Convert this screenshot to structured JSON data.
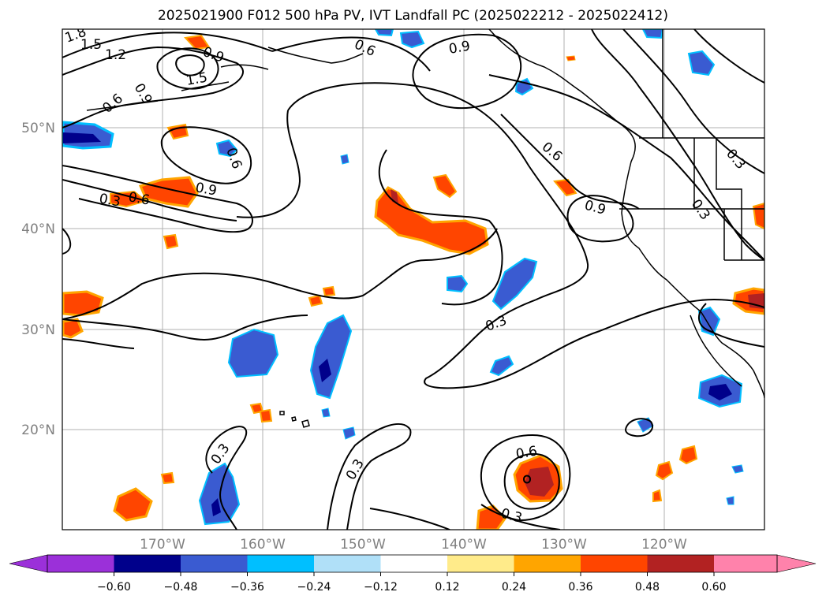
{
  "title": "2025021900 F012 500 hPa PV, IVT Landfall PC (2025022212 - 2025022412)",
  "map": {
    "lat_labels": [
      "50°N",
      "40°N",
      "30°N",
      "20°N"
    ],
    "lon_labels": [
      "170°W",
      "160°W",
      "150°W",
      "140°W",
      "130°W",
      "120°W"
    ],
    "grid": true,
    "label_color": "#808080"
  },
  "contour_labels": [
    "1.8",
    "1.5",
    "1.2",
    "0.6",
    "0.9",
    "0.6",
    "1.5",
    "0.9",
    "0.6",
    "0.9",
    "0.3",
    "0.6",
    "0.9",
    "0.6",
    "0.9",
    "0.3",
    "0.3",
    "0.3",
    "0.3",
    "0.3",
    "0.6",
    "0.3"
  ],
  "colorbar": {
    "ticks": [
      "−0.60",
      "−0.48",
      "−0.36",
      "−0.24",
      "−0.12",
      "0.12",
      "0.24",
      "0.36",
      "0.48",
      "0.60"
    ],
    "colors": [
      "#9b30d9",
      "#00008b",
      "#3a5bd1",
      "#00bfff",
      "#b0e0f8",
      "#ffffff",
      "#ffeb8a",
      "#ffa500",
      "#ff4500",
      "#b22222",
      "#ff82ab"
    ]
  }
}
